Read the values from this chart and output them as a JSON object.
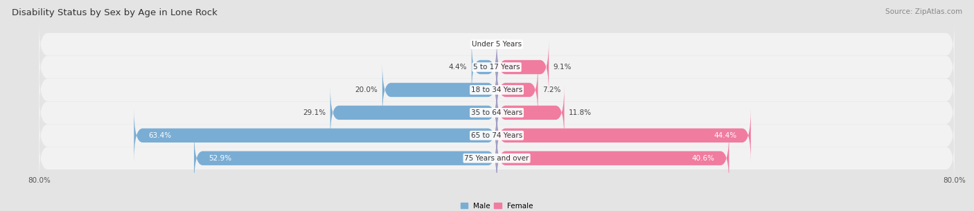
{
  "title": "Disability Status by Sex by Age in Lone Rock",
  "source": "Source: ZipAtlas.com",
  "categories": [
    "Under 5 Years",
    "5 to 17 Years",
    "18 to 34 Years",
    "35 to 64 Years",
    "65 to 74 Years",
    "75 Years and over"
  ],
  "male_values": [
    0.0,
    4.4,
    20.0,
    29.1,
    63.4,
    52.9
  ],
  "female_values": [
    0.0,
    9.1,
    7.2,
    11.8,
    44.4,
    40.6
  ],
  "male_color": "#7aadd4",
  "female_color": "#f07ca0",
  "male_label": "Male",
  "female_label": "Female",
  "xlim": 80.0,
  "bar_height": 0.62,
  "bg_color": "#e4e4e4",
  "row_bg_color": "#f2f2f2",
  "title_fontsize": 9.5,
  "label_fontsize": 7.5,
  "category_fontsize": 7.5,
  "source_fontsize": 7.5,
  "tick_fontsize": 7.5
}
